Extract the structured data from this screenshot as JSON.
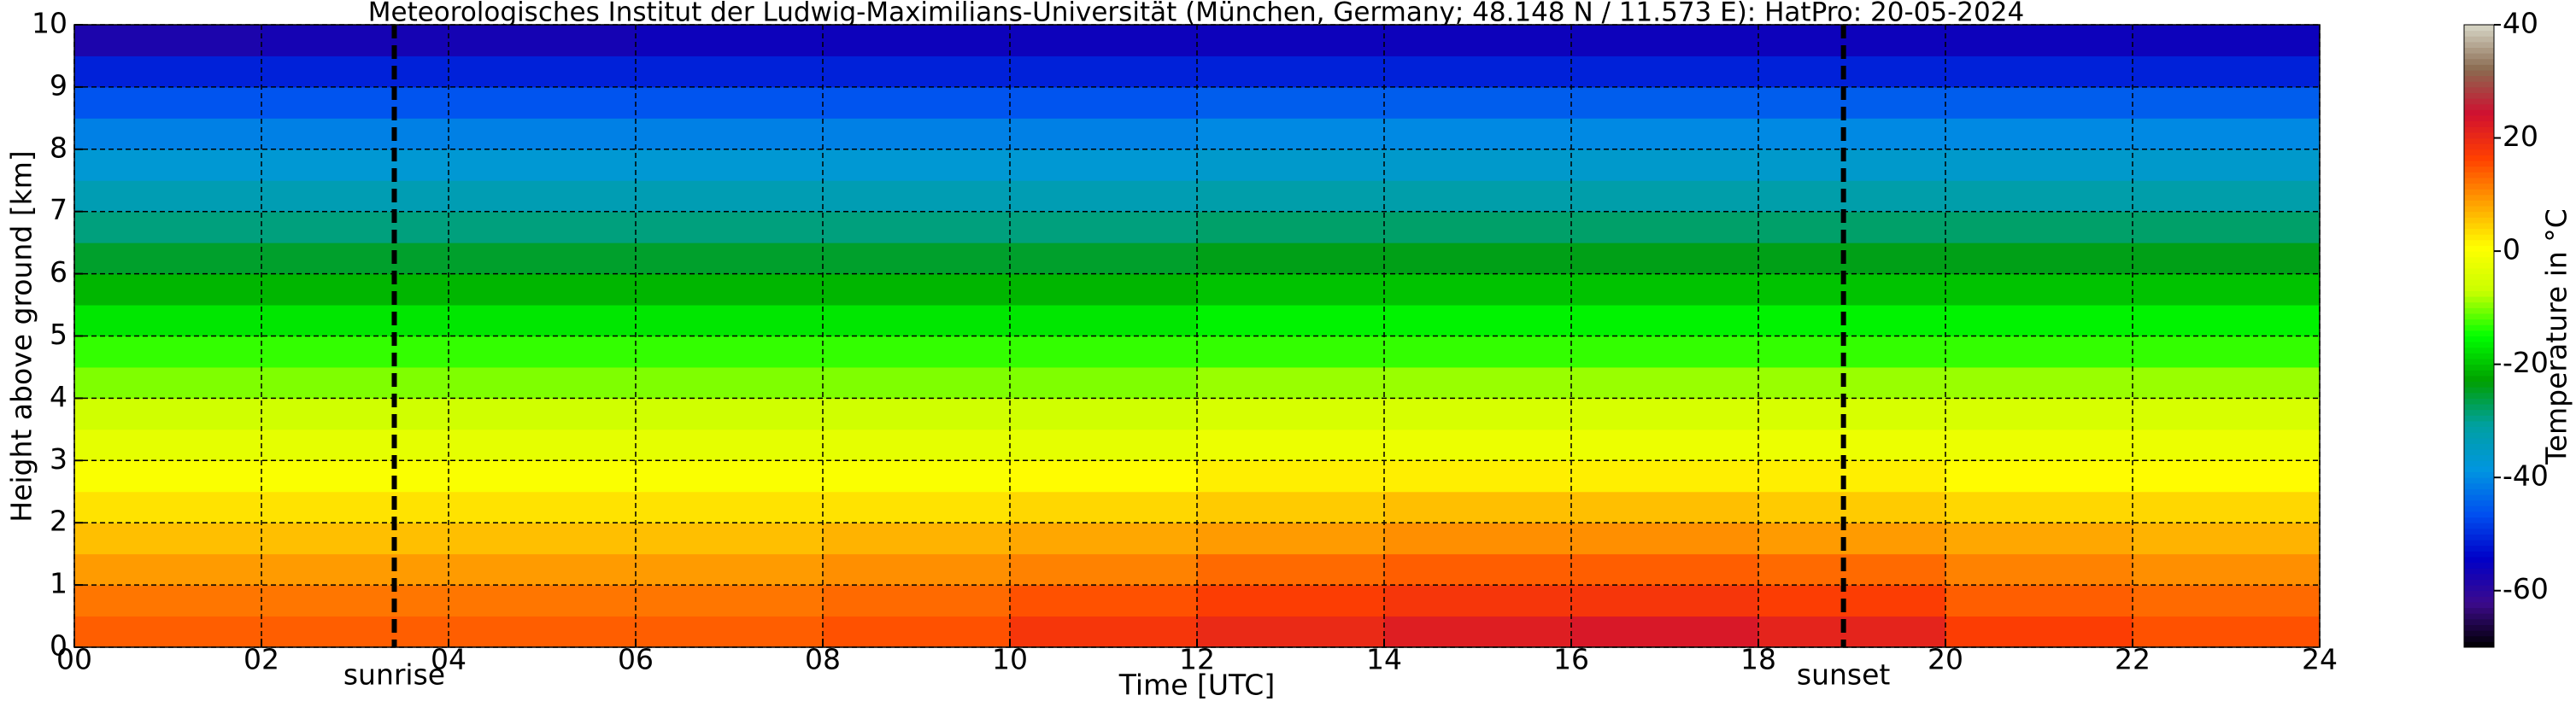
{
  "chart_data": {
    "type": "heatmap",
    "title": "Meteorologisches Institut der Ludwig-Maximilians-Universität (München, Germany; 48.148 N / 11.573 E):    HatPro: 20-05-2024",
    "x_label": "Time [UTC]",
    "y_label": "Height above ground [km]",
    "colorbar_label": "Temperature in $^\\circ$C",
    "x": [
      1,
      3,
      5,
      7,
      9,
      11,
      13,
      15,
      17,
      19,
      21,
      23
    ],
    "y": [
      0.25,
      0.75,
      1.25,
      1.75,
      2.25,
      2.75,
      3.25,
      3.75,
      4.25,
      4.75,
      5.25,
      5.75,
      6.25,
      6.75,
      7.25,
      7.75,
      8.25,
      8.75,
      9.25,
      9.75
    ],
    "z": [
      [
        14,
        14,
        14,
        14,
        15,
        18,
        20,
        22,
        23,
        21,
        17,
        15
      ],
      [
        12,
        12,
        12,
        12,
        13,
        15,
        17,
        18,
        18,
        17,
        14,
        13
      ],
      [
        9,
        9,
        9,
        9,
        10,
        11,
        13,
        14,
        14,
        13,
        11,
        10
      ],
      [
        6,
        6,
        6,
        6,
        7,
        8,
        9,
        10,
        10,
        9,
        8,
        7
      ],
      [
        3,
        3,
        3,
        3,
        3,
        4,
        5,
        6,
        6,
        5,
        4,
        4
      ],
      [
        0,
        0,
        0,
        0,
        0,
        1,
        2,
        2,
        2,
        2,
        1,
        1
      ],
      [
        -3,
        -3,
        -3,
        -3,
        -3,
        -3,
        -2,
        -2,
        -2,
        -2,
        -2,
        -2
      ],
      [
        -6,
        -6,
        -6,
        -6,
        -6,
        -6,
        -5,
        -5,
        -5,
        -5,
        -5,
        -5
      ],
      [
        -10,
        -10,
        -10,
        -10,
        -10,
        -10,
        -9,
        -9,
        -9,
        -9,
        -9,
        -9
      ],
      [
        -13,
        -13,
        -13,
        -13,
        -13,
        -13,
        -13,
        -13,
        -13,
        -13,
        -13,
        -13
      ],
      [
        -17,
        -17,
        -17,
        -17,
        -17,
        -17,
        -16,
        -16,
        -16,
        -16,
        -16,
        -16
      ],
      [
        -21,
        -21,
        -21,
        -21,
        -21,
        -21,
        -20,
        -20,
        -20,
        -20,
        -20,
        -20
      ],
      [
        -25,
        -25,
        -25,
        -25,
        -25,
        -25,
        -24,
        -24,
        -24,
        -24,
        -24,
        -24
      ],
      [
        -29,
        -29,
        -29,
        -29,
        -29,
        -29,
        -28,
        -28,
        -28,
        -28,
        -28,
        -28
      ],
      [
        -33,
        -33,
        -33,
        -33,
        -33,
        -33,
        -32,
        -32,
        -32,
        -32,
        -32,
        -32
      ],
      [
        -37,
        -37,
        -37,
        -37,
        -37,
        -37,
        -36,
        -36,
        -36,
        -36,
        -36,
        -36
      ],
      [
        -41,
        -41,
        -41,
        -41,
        -41,
        -41,
        -40,
        -40,
        -40,
        -40,
        -40,
        -40
      ],
      [
        -46,
        -46,
        -46,
        -46,
        -46,
        -46,
        -45,
        -45,
        -45,
        -45,
        -45,
        -45
      ],
      [
        -51,
        -51,
        -51,
        -51,
        -51,
        -51,
        -51,
        -51,
        -51,
        -51,
        -51,
        -51
      ],
      [
        -58,
        -57,
        -57,
        -56,
        -56,
        -56,
        -56,
        -56,
        -56,
        -56,
        -56,
        -56
      ]
    ],
    "xlim": [
      0,
      24
    ],
    "ylim": [
      0,
      10
    ],
    "clim": [
      -70,
      40
    ],
    "xticks": [
      {
        "value": 0,
        "label": "00"
      },
      {
        "value": 2,
        "label": "02"
      },
      {
        "value": 4,
        "label": "04"
      },
      {
        "value": 6,
        "label": "06"
      },
      {
        "value": 8,
        "label": "08"
      },
      10,
      12,
      14,
      16,
      18,
      20,
      22,
      24
    ],
    "yticks": [
      0,
      1,
      2,
      3,
      4,
      5,
      6,
      7,
      8,
      9,
      10
    ],
    "cticks": [
      -60,
      -40,
      -20,
      0,
      20,
      40
    ],
    "colormap": [
      "#000000",
      "#3c0a8c",
      "#0000c8",
      "#0050f0",
      "#0096e0",
      "#00a0a0",
      "#00a000",
      "#00ff00",
      "#c8ff00",
      "#ffff00",
      "#ffa000",
      "#ff4000",
      "#d01030",
      "#8a6a50",
      "#d8d8c8"
    ],
    "grid": true,
    "annotations": [
      {
        "label": "sunrise",
        "x": 3.42
      },
      {
        "label": "sunset",
        "x": 18.91
      }
    ]
  }
}
